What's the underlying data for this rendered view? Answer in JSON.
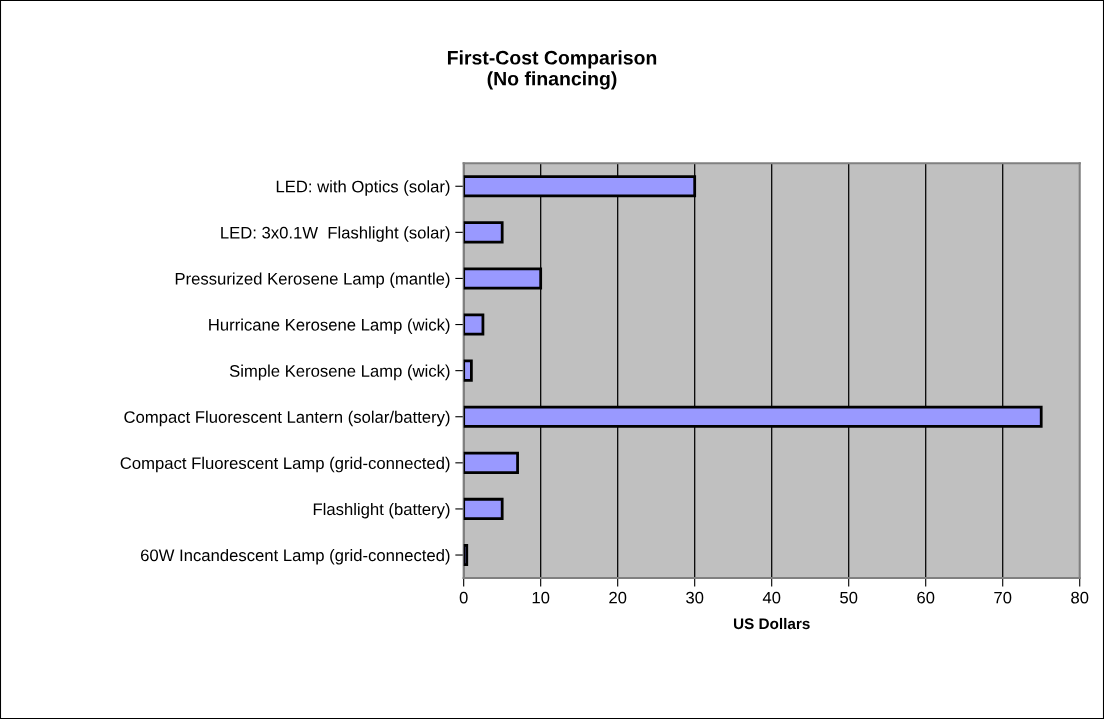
{
  "chart_data": {
    "type": "bar",
    "orientation": "horizontal",
    "title": "First-Cost Comparison\n(No financing)",
    "xlabel": "US Dollars",
    "categories": [
      "LED: with Optics (solar)",
      "LED: 3x0.1W  Flashlight (solar)",
      "Pressurized Kerosene Lamp (mantle)",
      "Hurricane Kerosene Lamp (wick)",
      "Simple Kerosene Lamp (wick)",
      "Compact Fluorescent Lantern (solar/battery)",
      "Compact Fluorescent Lamp (grid-connected)",
      "Flashlight (battery)",
      "60W Incandescent Lamp (grid-connected)"
    ],
    "values": [
      30,
      5,
      10,
      2.5,
      1,
      75,
      7,
      5,
      0.4
    ],
    "color": "#9999ff",
    "xlim": [
      0,
      80
    ],
    "xticks": [
      0,
      10,
      20,
      30,
      40,
      50,
      60,
      70,
      80
    ],
    "grid": "x",
    "legend": false
  }
}
